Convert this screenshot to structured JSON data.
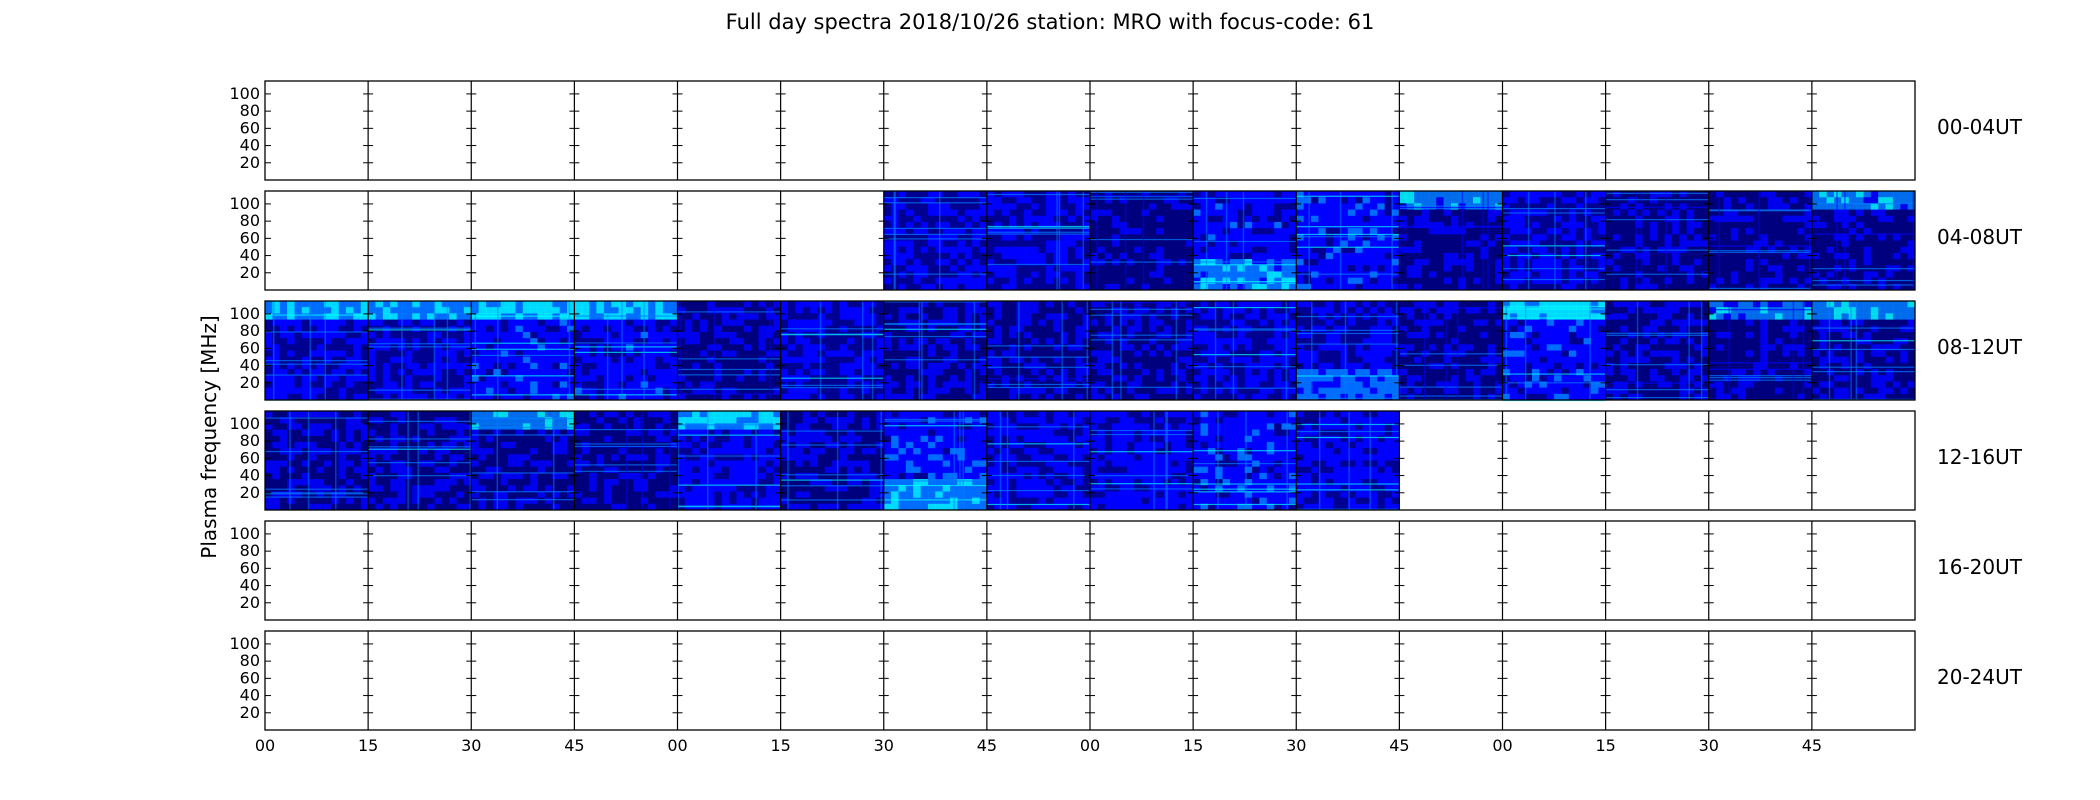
{
  "chart_data": {
    "type": "heatmap",
    "title": "Full day spectra 2018/10/26 station: MRO with focus-code: 61",
    "ylabel": "Plasma frequency [MHz]",
    "xlabel": "",
    "y_ticks": [
      20,
      40,
      60,
      80,
      100
    ],
    "ylim": [
      0,
      115
    ],
    "x_ticks": [
      "00",
      "15",
      "30",
      "45",
      "00",
      "15",
      "30",
      "45",
      "00",
      "15",
      "30",
      "45",
      "00",
      "15",
      "30",
      "45"
    ],
    "minutes_per_panel": 15,
    "panels_per_row": 16,
    "colormap": [
      "#00007f",
      "#0000ff",
      "#007fff",
      "#00ffff",
      "#7fff7f"
    ],
    "grid": false,
    "rows": [
      {
        "label": "00-04UT",
        "available": [
          0,
          0,
          0,
          0,
          0,
          0,
          0,
          0,
          0,
          0,
          0,
          0,
          0,
          0,
          0,
          0
        ]
      },
      {
        "label": "04-08UT",
        "available": [
          0,
          0,
          0,
          0,
          0,
          0,
          1,
          1,
          1,
          1,
          1,
          1,
          1,
          1,
          1,
          1
        ]
      },
      {
        "label": "08-12UT",
        "available": [
          1,
          1,
          1,
          1,
          1,
          1,
          1,
          1,
          1,
          1,
          1,
          1,
          1,
          1,
          1,
          1
        ]
      },
      {
        "label": "12-16UT",
        "available": [
          1,
          1,
          1,
          1,
          1,
          1,
          1,
          1,
          1,
          1,
          1,
          0,
          0,
          0,
          0,
          0
        ]
      },
      {
        "label": "16-20UT",
        "available": [
          0,
          0,
          0,
          0,
          0,
          0,
          0,
          0,
          0,
          0,
          0,
          0,
          0,
          0,
          0,
          0
        ]
      },
      {
        "label": "20-24UT",
        "available": [
          0,
          0,
          0,
          0,
          0,
          0,
          0,
          0,
          0,
          0,
          0,
          0,
          0,
          0,
          0,
          0
        ]
      }
    ]
  }
}
